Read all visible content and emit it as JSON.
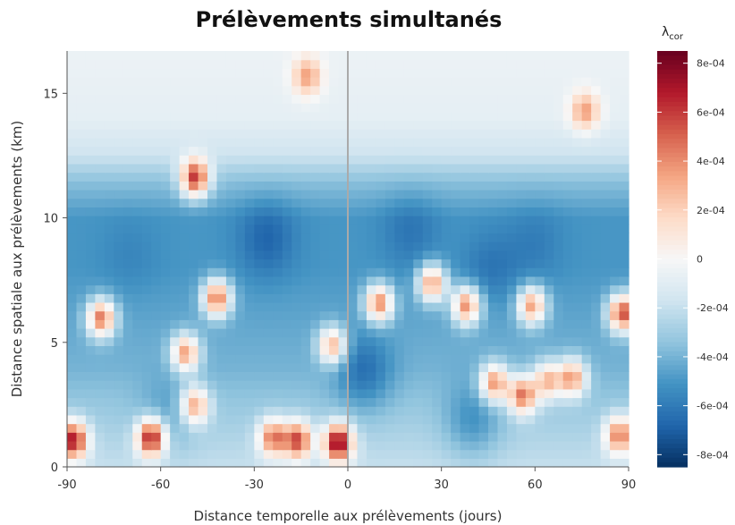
{
  "chart_data": {
    "type": "heatmap",
    "title": "Prélèvements simultanés",
    "xlabel": "Distance temporelle aux prélèvements (jours)",
    "ylabel": "Distance spatiale aux prélèvements (km)",
    "xlim": [
      -90,
      90
    ],
    "ylim": [
      0,
      16.7
    ],
    "x_ticks": [
      "-90",
      "-60",
      "-30",
      "0",
      "30",
      "60",
      "90"
    ],
    "x_tick_values": [
      -90,
      -60,
      -30,
      0,
      30,
      60,
      90
    ],
    "y_ticks": [
      "0",
      "5",
      "10",
      "15"
    ],
    "y_tick_values": [
      0,
      5,
      10,
      15
    ],
    "legend": {
      "title_main": "λ",
      "title_sub": "cor",
      "range": [
        -0.00085,
        0.00085
      ],
      "ticks": [
        "8e-04",
        "6e-04",
        "4e-04",
        "2e-04",
        "0",
        "-2e-04",
        "-4e-04",
        "-6e-04",
        "-8e-04"
      ],
      "tick_values": [
        0.0008,
        0.0006,
        0.0004,
        0.0002,
        0,
        -0.0002,
        -0.0004,
        -0.0006,
        -0.0008
      ]
    },
    "colorscale": [
      "#053061",
      "#2166ac",
      "#4393c3",
      "#92c5de",
      "#d1e5f0",
      "#f7f7f7",
      "#fddbc7",
      "#f4a582",
      "#d6604d",
      "#b2182b",
      "#67001f"
    ],
    "baseline_by_distance_km": [
      {
        "y": 0,
        "value": -0.0002
      },
      {
        "y": 2,
        "value": -0.0003
      },
      {
        "y": 4,
        "value": -0.0004
      },
      {
        "y": 6,
        "value": -0.00045
      },
      {
        "y": 8,
        "value": -0.0005
      },
      {
        "y": 10,
        "value": -0.0005
      },
      {
        "y": 11.5,
        "value": -0.00035
      },
      {
        "y": 12.5,
        "value": -0.00018
      },
      {
        "y": 14,
        "value": -8e-05
      },
      {
        "y": 16.7,
        "value": -5e-05
      }
    ],
    "hotspots": [
      {
        "x": -88,
        "y": 1.1,
        "value": 0.0007
      },
      {
        "x": -79,
        "y": 6.0,
        "value": 0.00045
      },
      {
        "x": -63,
        "y": 1.2,
        "value": 0.00075
      },
      {
        "x": -52,
        "y": 4.6,
        "value": 0.00035
      },
      {
        "x": -49,
        "y": 2.5,
        "value": 0.00035
      },
      {
        "x": -49,
        "y": 11.6,
        "value": 0.0006
      },
      {
        "x": -42,
        "y": 6.8,
        "value": 0.00045
      },
      {
        "x": -24,
        "y": 1.2,
        "value": 0.00045
      },
      {
        "x": -16,
        "y": 1.1,
        "value": 0.00055
      },
      {
        "x": -13,
        "y": 15.7,
        "value": 0.00035
      },
      {
        "x": -5,
        "y": 4.9,
        "value": 0.0003
      },
      {
        "x": -3,
        "y": 1.0,
        "value": 0.0008
      },
      {
        "x": 10,
        "y": 6.6,
        "value": 0.0004
      },
      {
        "x": 27,
        "y": 7.4,
        "value": 0.00035
      },
      {
        "x": 38,
        "y": 6.5,
        "value": 0.0004
      },
      {
        "x": 47,
        "y": 3.4,
        "value": 0.0004
      },
      {
        "x": 56,
        "y": 2.9,
        "value": 0.00045
      },
      {
        "x": 59,
        "y": 6.5,
        "value": 0.00035
      },
      {
        "x": 64,
        "y": 3.5,
        "value": 0.00025
      },
      {
        "x": 72,
        "y": 3.6,
        "value": 0.00035
      },
      {
        "x": 76,
        "y": 14.3,
        "value": 0.00035
      },
      {
        "x": 88,
        "y": 6.2,
        "value": 0.00055
      },
      {
        "x": 87,
        "y": 1.3,
        "value": 0.00045
      }
    ],
    "coldspots": [
      {
        "x": -26,
        "y": 9.2,
        "value": -0.0008
      },
      {
        "x": 5,
        "y": 3.8,
        "value": -0.0008
      },
      {
        "x": 20,
        "y": 9.5,
        "value": -0.0007
      },
      {
        "x": 46,
        "y": 8.0,
        "value": -0.0007
      },
      {
        "x": 60,
        "y": 9.0,
        "value": -0.00065
      },
      {
        "x": 40,
        "y": 1.8,
        "value": -0.00065
      },
      {
        "x": -70,
        "y": 8.5,
        "value": -0.0006
      },
      {
        "x": -58,
        "y": 2.0,
        "value": -0.00055
      }
    ],
    "vertical_line_x": 0
  }
}
